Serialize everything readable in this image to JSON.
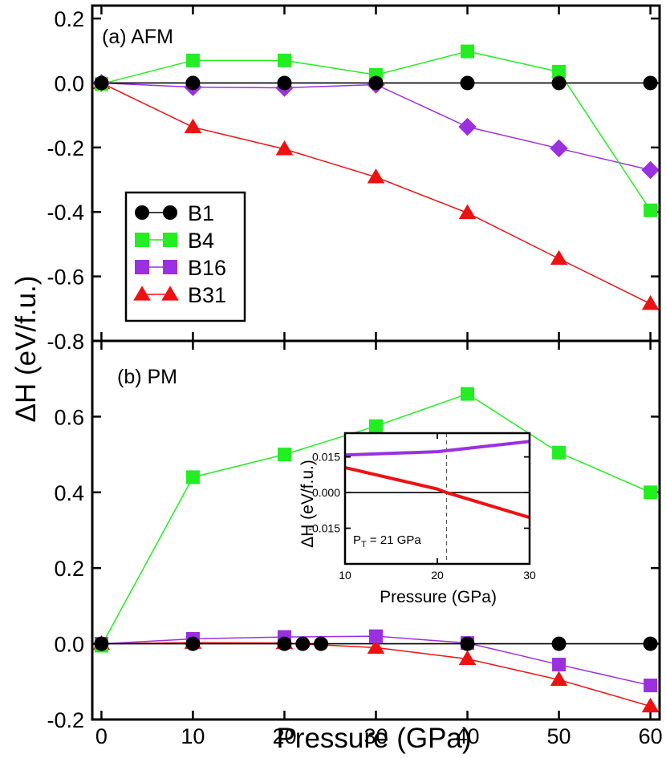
{
  "chart_data": [
    {
      "type": "line",
      "panel_label": "(a) AFM",
      "x": [
        0,
        10,
        20,
        30,
        40,
        50,
        60
      ],
      "xlim": [
        -1,
        61
      ],
      "ylim": [
        -0.8,
        0.24
      ],
      "yticks": [
        "0.2",
        "0.0",
        "-0.2",
        "-0.4",
        "-0.6",
        "-0.8"
      ],
      "series": [
        {
          "name": "B1",
          "color": "#000000",
          "marker": "circle",
          "x": [
            0,
            10,
            20,
            30,
            40,
            50,
            60
          ],
          "values": [
            0,
            0,
            0,
            0,
            0,
            0,
            0
          ]
        },
        {
          "name": "B4",
          "color": "#22ee22",
          "marker": "square",
          "x": [
            0,
            10,
            20,
            30,
            40,
            50,
            60
          ],
          "values": [
            -0.003,
            0.07,
            0.07,
            0.025,
            0.098,
            0.035,
            -0.395
          ]
        },
        {
          "name": "B16",
          "color": "#9b30e0",
          "marker": "diamond",
          "x": [
            0,
            10,
            20,
            30,
            40,
            50,
            60
          ],
          "values": [
            0,
            -0.013,
            -0.015,
            -0.005,
            -0.136,
            -0.203,
            -0.27
          ]
        },
        {
          "name": "B31",
          "color": "#ee1111",
          "marker": "triangle",
          "x": [
            0,
            10,
            20,
            30,
            40,
            50,
            60
          ],
          "values": [
            0,
            -0.137,
            -0.205,
            -0.292,
            -0.403,
            -0.545,
            -0.685
          ]
        }
      ]
    },
    {
      "type": "line",
      "panel_label": "(b) PM",
      "x": [
        0,
        10,
        20,
        22,
        24,
        30,
        40,
        50,
        60
      ],
      "xlim": [
        -1,
        61
      ],
      "ylim": [
        -0.2,
        0.8
      ],
      "xticks": [
        "0",
        "10",
        "20",
        "30",
        "40",
        "50",
        "60"
      ],
      "yticks": [
        "0.6",
        "0.4",
        "0.2",
        "0.0",
        "-0.2"
      ],
      "xlabel": "Pressure (GPa)",
      "ylabel": "ΔH (eV/f.u.)",
      "series": [
        {
          "name": "B1",
          "color": "#000000",
          "marker": "circle",
          "x": [
            0,
            10,
            20,
            22,
            24,
            40,
            50,
            60
          ],
          "values": [
            0,
            0,
            0,
            0,
            0,
            0,
            0,
            0
          ]
        },
        {
          "name": "B4",
          "color": "#22ee22",
          "marker": "square",
          "x": [
            0,
            10,
            20,
            30,
            40,
            50,
            60
          ],
          "values": [
            -0.005,
            0.44,
            0.5,
            0.575,
            0.66,
            0.505,
            0.4
          ]
        },
        {
          "name": "B16",
          "color": "#9b30e0",
          "marker": "square",
          "x": [
            0,
            10,
            20,
            30,
            40,
            50,
            60
          ],
          "values": [
            0,
            0.013,
            0.018,
            0.02,
            0.002,
            -0.055,
            -0.11
          ]
        },
        {
          "name": "B31",
          "color": "#ee1111",
          "marker": "triangle",
          "x": [
            0,
            10,
            20,
            30,
            40,
            50,
            60
          ],
          "values": [
            0,
            0.003,
            0.002,
            -0.01,
            -0.04,
            -0.095,
            -0.165
          ]
        }
      ]
    },
    {
      "type": "line",
      "inset": true,
      "xlim": [
        10,
        30
      ],
      "ylim": [
        -0.03,
        0.025
      ],
      "xticks": [
        "10",
        "20",
        "30"
      ],
      "yticks": [
        "0.015",
        "0.000",
        "-0.015"
      ],
      "xlabel": "Pressure (GPa)",
      "ylabel": "ΔH (eV/f.u.)",
      "annotation": {
        "prefix": "P",
        "subscript": "T",
        "suffix": " = 21 GPa",
        "x": 21
      },
      "series": [
        {
          "name": "B1",
          "color": "#000000",
          "x": [
            10,
            30
          ],
          "values": [
            0,
            0
          ]
        },
        {
          "name": "B16",
          "color": "#9b30e0",
          "x": [
            10,
            20,
            30
          ],
          "values": [
            0.0158,
            0.0172,
            0.0215
          ]
        },
        {
          "name": "B31",
          "color": "#ee1111",
          "x": [
            10,
            20,
            21,
            30
          ],
          "values": [
            0.0105,
            0.0015,
            0,
            -0.0105
          ]
        }
      ]
    }
  ],
  "legend": {
    "placement": "left",
    "entries": [
      {
        "label": "B1",
        "color": "#000000",
        "marker": "circle"
      },
      {
        "label": "B4",
        "color": "#22ee22",
        "marker": "square"
      },
      {
        "label": "B16",
        "color": "#9b30e0",
        "marker": "square"
      },
      {
        "label": "B31",
        "color": "#ee1111",
        "marker": "triangle"
      }
    ]
  }
}
